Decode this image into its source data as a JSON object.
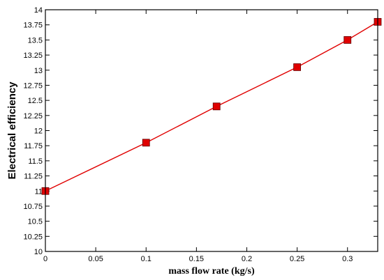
{
  "chart_data": {
    "type": "line",
    "title": "",
    "xlabel": "mass flow rate (kg/s)",
    "ylabel": "Electrical efficiency",
    "xlim": [
      0,
      0.33
    ],
    "ylim": [
      10,
      14
    ],
    "x_ticks": [
      "0",
      "0.05",
      "0.1",
      "0.15",
      "0.2",
      "0.25",
      "0.3"
    ],
    "y_ticks": [
      "10",
      "10.25",
      "10.5",
      "10.75",
      "11",
      "11.25",
      "11.5",
      "11.75",
      "12",
      "12.25",
      "12.5",
      "12.75",
      "13",
      "13.25",
      "13.5",
      "13.75",
      "14"
    ],
    "grid": false,
    "legend": "none",
    "series": [
      {
        "x": [
          0,
          0.1,
          0.17,
          0.25,
          0.3,
          0.33
        ],
        "y": [
          11.0,
          11.8,
          12.4,
          13.05,
          13.5,
          13.8
        ],
        "color": "#e00000",
        "marker": "square"
      }
    ]
  }
}
